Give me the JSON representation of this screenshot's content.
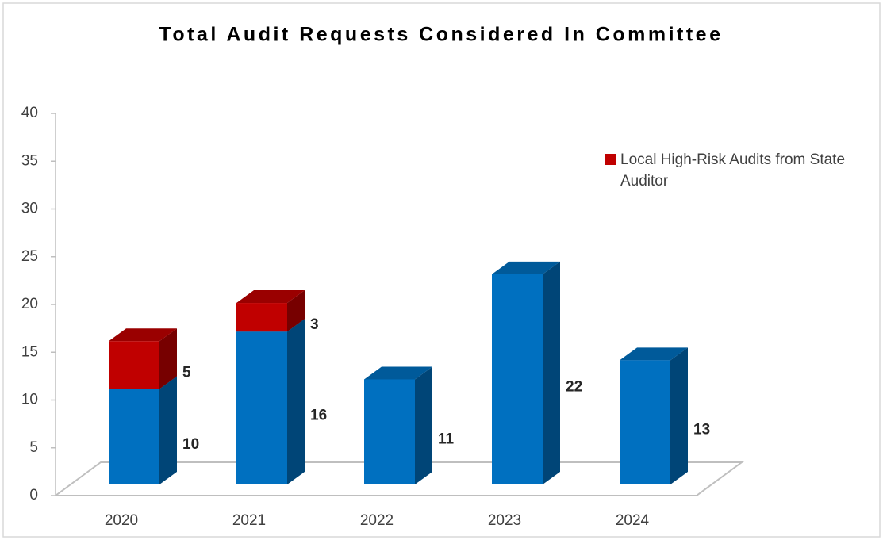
{
  "chart_data": {
    "type": "bar3d_stacked",
    "title": "Total Audit Requests Considered In Committee",
    "categories": [
      "2020",
      "2021",
      "2022",
      "2023",
      "2024"
    ],
    "series": [
      {
        "color": "#0070c0",
        "values": [
          10,
          16,
          11,
          22,
          13
        ]
      },
      {
        "name": "Local High-Risk Audits from State Auditor",
        "color": "#c00000",
        "values": [
          5,
          3,
          null,
          null,
          null
        ]
      }
    ],
    "ylim": [
      0,
      40
    ],
    "yticks": [
      0,
      5,
      10,
      15,
      20,
      25,
      30,
      35,
      40
    ],
    "grid": false,
    "legend": "right"
  }
}
